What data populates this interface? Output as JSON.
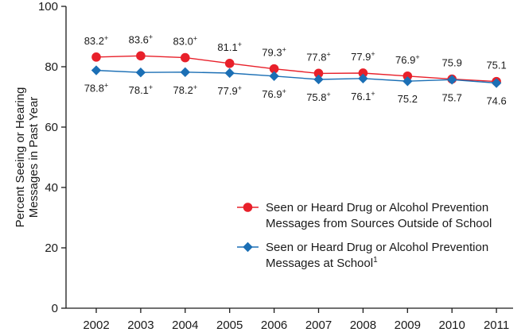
{
  "chart_data": {
    "type": "line",
    "ylabel_lines": [
      "Percent Seeing or Hearing",
      "Messages in Past Year"
    ],
    "ylim": [
      0,
      100
    ],
    "yticks": [
      0,
      20,
      40,
      60,
      80,
      100
    ],
    "x": [
      "2002",
      "2003",
      "2004",
      "2005",
      "2006",
      "2007",
      "2008",
      "2009",
      "2010",
      "2011"
    ],
    "grid": false,
    "legend_position": "center-right",
    "significance_marker": "+",
    "series": [
      {
        "name_lines": [
          "Seen or Heard Drug or Alcohol Prevention",
          "Messages from Sources Outside of School"
        ],
        "color": "#e8202a",
        "marker": "circle",
        "values": [
          83.2,
          83.6,
          83.0,
          81.1,
          79.3,
          77.8,
          77.9,
          76.9,
          75.9,
          75.1
        ],
        "labels": [
          "83.2",
          "83.6",
          "83.0",
          "81.1",
          "79.3",
          "77.8",
          "77.9",
          "76.9",
          "75.9",
          "75.1"
        ],
        "significant": [
          true,
          true,
          true,
          true,
          true,
          true,
          true,
          true,
          false,
          false
        ]
      },
      {
        "name_lines": [
          "Seen or Heard Drug or Alcohol Prevention",
          "Messages at School"
        ],
        "name_footnote": "1",
        "color": "#1b6fb5",
        "marker": "diamond",
        "values": [
          78.8,
          78.1,
          78.2,
          77.9,
          76.9,
          75.8,
          76.1,
          75.2,
          75.7,
          74.6
        ],
        "labels": [
          "78.8",
          "78.1",
          "78.2",
          "77.9",
          "76.9",
          "75.8",
          "76.1",
          "75.2",
          "75.7",
          "74.6"
        ],
        "significant": [
          true,
          true,
          true,
          true,
          true,
          true,
          true,
          false,
          false,
          false
        ]
      }
    ]
  }
}
